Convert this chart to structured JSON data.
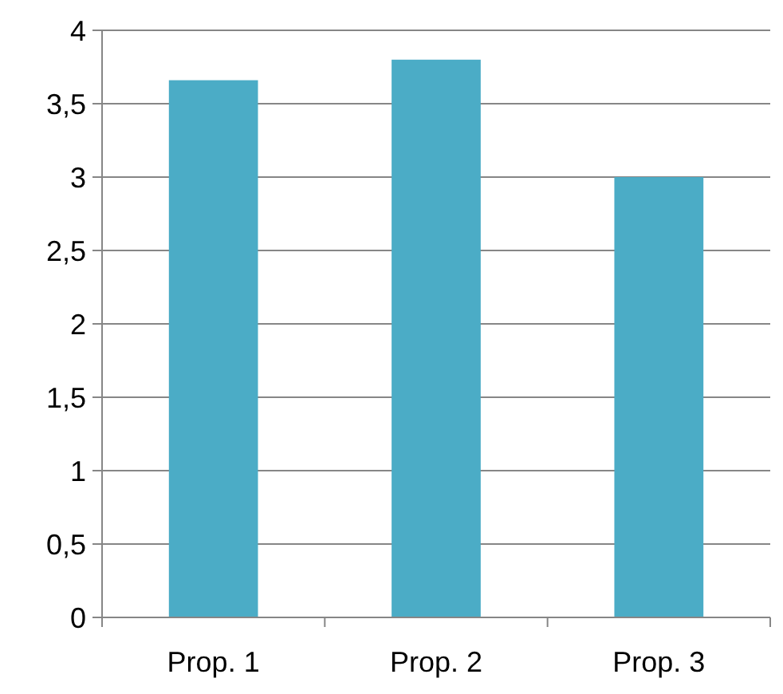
{
  "chart_data": {
    "type": "bar",
    "categories": [
      "Prop. 1",
      "Prop. 2",
      "Prop. 3"
    ],
    "values": [
      3.66,
      3.8,
      3.0
    ],
    "color": "#4bacc6",
    "ylim": [
      0,
      4
    ],
    "yticks": [
      0,
      {
        "value": 0.5,
        "label": "0,5"
      },
      1,
      {
        "value": 1.5,
        "label": "1,5"
      },
      2,
      {
        "value": 2.5,
        "label": "2,5"
      },
      3,
      {
        "value": 3.5,
        "label": "3,5"
      },
      4
    ],
    "grid": "y"
  }
}
